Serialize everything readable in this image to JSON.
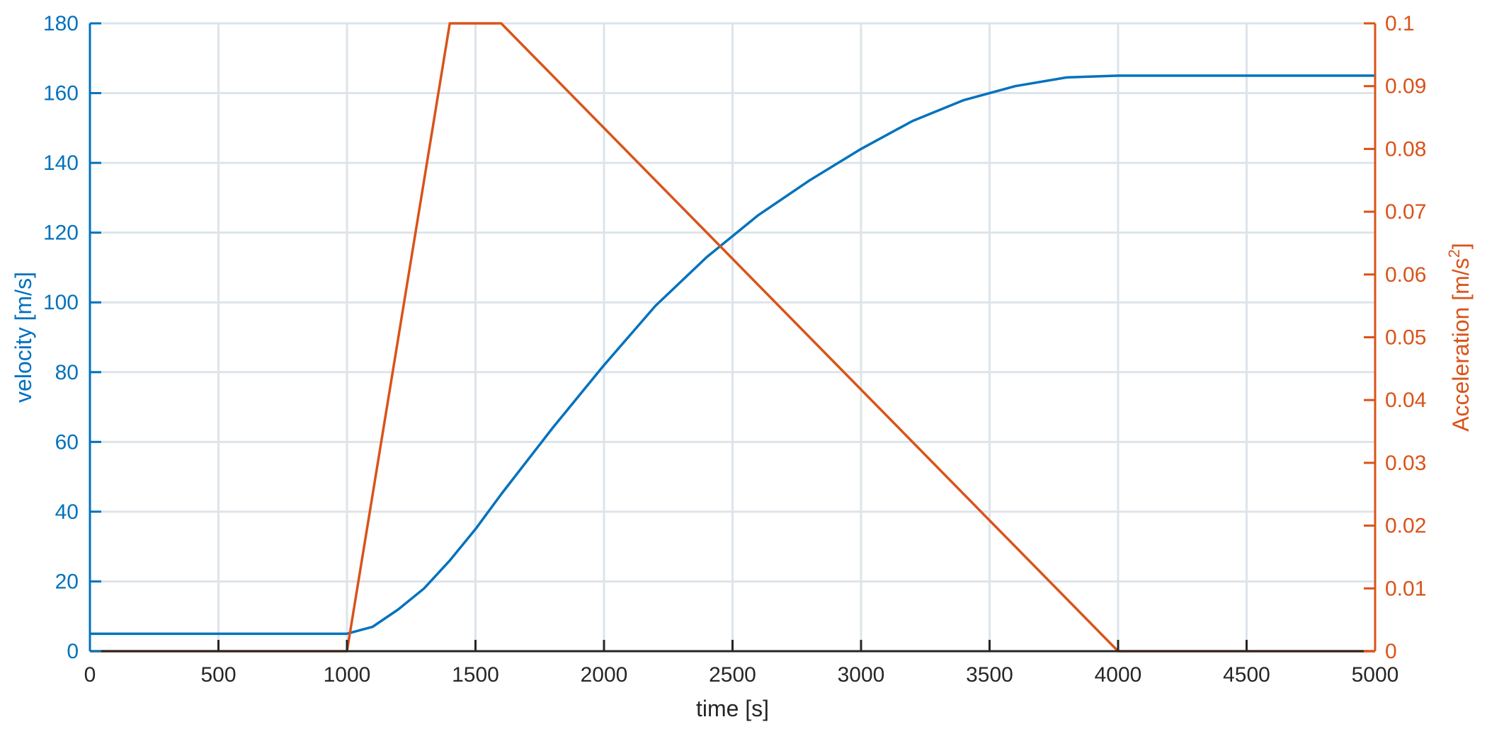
{
  "chart_data": {
    "type": "line",
    "x": {
      "label": "time [s]",
      "lim": [
        0,
        5000
      ],
      "ticks": [
        0,
        500,
        1000,
        1500,
        2000,
        2500,
        3000,
        3500,
        4000,
        4500,
        5000
      ],
      "tick_labels": [
        "0",
        "500",
        "1000",
        "1500",
        "2000",
        "2500",
        "3000",
        "3500",
        "4000",
        "4500",
        "5000"
      ]
    },
    "y_left": {
      "label": "velocity [m/s]",
      "lim": [
        0,
        180
      ],
      "ticks": [
        0,
        20,
        40,
        60,
        80,
        100,
        120,
        140,
        160,
        180
      ],
      "tick_labels": [
        "0",
        "20",
        "40",
        "60",
        "80",
        "100",
        "120",
        "140",
        "160",
        "180"
      ],
      "color": "#0072BD"
    },
    "y_right": {
      "label_main": "Acceleration [m/s",
      "label_sup": "2",
      "label_end": "]",
      "lim": [
        0,
        0.1
      ],
      "ticks": [
        0,
        0.01,
        0.02,
        0.03,
        0.04,
        0.05,
        0.06,
        0.07,
        0.08,
        0.09,
        0.1
      ],
      "tick_labels": [
        "0",
        "0.01",
        "0.02",
        "0.03",
        "0.04",
        "0.05",
        "0.06",
        "0.07",
        "0.08",
        "0.09",
        "0.1"
      ],
      "color": "#D95319"
    },
    "grid": true,
    "grid_color": "#dde4ea",
    "series": [
      {
        "axis": "left",
        "color": "#0072BD",
        "x": [
          0,
          1000,
          1100,
          1200,
          1300,
          1400,
          1500,
          1600,
          1800,
          2000,
          2200,
          2400,
          2500,
          2600,
          2800,
          3000,
          3200,
          3400,
          3600,
          3800,
          4000,
          5000
        ],
        "y": [
          5,
          5,
          7,
          12,
          18,
          26,
          35,
          45,
          64,
          82,
          99,
          113,
          119,
          125,
          135,
          144,
          152,
          158,
          162,
          164.5,
          165,
          165
        ]
      },
      {
        "axis": "right",
        "color": "#D95319",
        "x": [
          0,
          1000,
          1400,
          1600,
          4000,
          5000
        ],
        "y": [
          0,
          0,
          0.1,
          0.1,
          0,
          0
        ]
      }
    ]
  }
}
